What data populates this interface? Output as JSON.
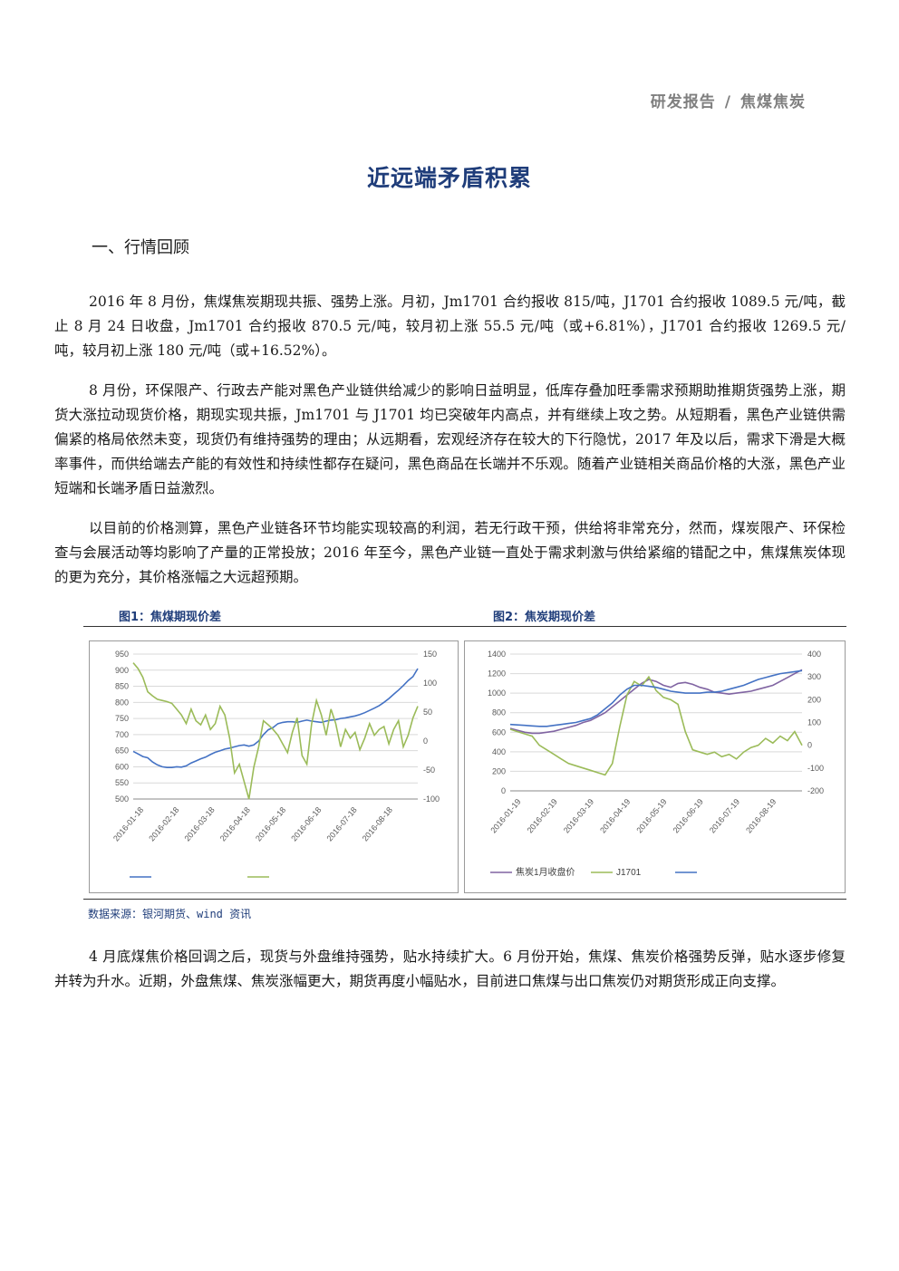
{
  "header": {
    "left": "研发报告",
    "sep": "/",
    "right": "焦煤焦炭"
  },
  "title": "近远端矛盾积累",
  "section_heading": "一、行情回顾",
  "paragraphs": [
    "2016 年 8 月份，焦煤焦炭期现共振、强势上涨。月初，Jm1701 合约报收 815/吨，J1701 合约报收 1089.5 元/吨，截止 8 月 24 日收盘，Jm1701 合约报收 870.5 元/吨，较月初上涨 55.5 元/吨（或+6.81%），J1701 合约报收 1269.5 元/吨，较月初上涨 180 元/吨（或+16.52%）。",
    "8 月份，环保限产、行政去产能对黑色产业链供给减少的影响日益明显，低库存叠加旺季需求预期助推期货强势上涨，期货大涨拉动现货价格，期现实现共振，Jm1701 与 J1701 均已突破年内高点，并有继续上攻之势。从短期看，黑色产业链供需偏紧的格局依然未变，现货仍有维持强势的理由；从远期看，宏观经济存在较大的下行隐忧，2017 年及以后，需求下滑是大概率事件，而供给端去产能的有效性和持续性都存在疑问，黑色商品在长端并不乐观。随着产业链相关商品价格的大涨，黑色产业短端和长端矛盾日益激烈。",
    "以目前的价格测算，黑色产业链各环节均能实现较高的利润，若无行政干预，供给将非常充分，然而，煤炭限产、环保检查与会展活动等均影响了产量的正常投放；2016 年至今，黑色产业链一直处于需求刺激与供给紧缩的错配之中，焦煤焦炭体现的更为充分，其价格涨幅之大远超预期。",
    "4 月底煤焦价格回调之后，现货与外盘维持强势，贴水持续扩大。6 月份开始，焦煤、焦炭价格强势反弹，贴水逐步修复并转为升水。近期，外盘焦煤、焦炭涨幅更大，期货再度小幅贴水，目前进口焦煤与出口焦炭仍对期货形成正向支撑。"
  ],
  "fig1_title": "图1：焦煤期现价差",
  "fig2_title": "图2：焦炭期现价差",
  "source": "数据来源：银河期货、wind 资讯",
  "chart_data": [
    {
      "type": "line",
      "title": "图1：焦煤期现价差",
      "yleft_ticks": [
        "950",
        "900",
        "850",
        "800",
        "750",
        "700",
        "650",
        "600",
        "550",
        "500"
      ],
      "yleft_lim": [
        500,
        950
      ],
      "yright_ticks": [
        "150",
        "100",
        "50",
        "0",
        "-50",
        "-100"
      ],
      "yright_lim": [
        -100,
        150
      ],
      "x_ticks": [
        "2016-01-18",
        "2016-02-18",
        "2016-03-18",
        "2016-04-18",
        "2016-05-18",
        "2016-06-18",
        "2016-07-18",
        "2016-08-18"
      ],
      "series": [
        {
          "axis": "left",
          "color": "#4472c4",
          "values": [
            648,
            640,
            632,
            628,
            615,
            606,
            600,
            598,
            598,
            600,
            599,
            603,
            612,
            618,
            625,
            630,
            638,
            645,
            650,
            655,
            658,
            662,
            666,
            668,
            664,
            668,
            680,
            700,
            715,
            722,
            734,
            738,
            740,
            740,
            738,
            742,
            745,
            742,
            740,
            738,
            742,
            745,
            746,
            750,
            752,
            755,
            758,
            762,
            768,
            775,
            782,
            790,
            800,
            812,
            825,
            838,
            852,
            868,
            880,
            905
          ]
        },
        {
          "axis": "right",
          "color": "#9bbb59",
          "values": [
            135,
            125,
            110,
            85,
            78,
            72,
            70,
            68,
            65,
            55,
            45,
            30,
            55,
            35,
            28,
            45,
            20,
            30,
            60,
            45,
            5,
            -55,
            -40,
            -70,
            -100,
            -45,
            -10,
            35,
            28,
            20,
            10,
            -5,
            -20,
            15,
            40,
            -25,
            -40,
            30,
            70,
            45,
            10,
            55,
            30,
            -10,
            20,
            5,
            15,
            -15,
            5,
            30,
            10,
            20,
            25,
            -5,
            20,
            35,
            -10,
            10,
            40,
            60
          ]
        }
      ]
    },
    {
      "type": "line",
      "title": "图2：焦炭期现价差",
      "yleft_ticks": [
        "1400",
        "1200",
        "1000",
        "800",
        "600",
        "400",
        "200",
        "0"
      ],
      "yleft_lim": [
        0,
        1400
      ],
      "yright_ticks": [
        "400",
        "300",
        "200",
        "100",
        "0",
        "-100",
        "-200"
      ],
      "yright_lim": [
        -200,
        400
      ],
      "x_ticks": [
        "2016-01-19",
        "2016-02-19",
        "2016-03-19",
        "2016-04-19",
        "2016-05-19",
        "2016-06-19",
        "2016-07-19",
        "2016-08-19"
      ],
      "series": [
        {
          "name": "焦炭1月收盘价",
          "axis": "left",
          "color": "#8064a2",
          "values": [
            640,
            620,
            600,
            590,
            590,
            600,
            610,
            630,
            650,
            670,
            700,
            720,
            760,
            800,
            860,
            920,
            980,
            1040,
            1100,
            1140,
            1120,
            1080,
            1060,
            1100,
            1110,
            1090,
            1060,
            1040,
            1010,
            1000,
            990,
            1000,
            1010,
            1020,
            1040,
            1060,
            1080,
            1120,
            1160,
            1200,
            1240
          ]
        },
        {
          "name": "J1701",
          "axis": "right",
          "color": "#9bbb59",
          "values": [
            70,
            60,
            50,
            40,
            0,
            -20,
            -40,
            -60,
            -80,
            -90,
            -100,
            -110,
            -120,
            -130,
            -80,
            80,
            220,
            280,
            260,
            300,
            240,
            210,
            200,
            180,
            60,
            -20,
            -30,
            -40,
            -30,
            -50,
            -40,
            -60,
            -30,
            -10,
            0,
            30,
            10,
            40,
            20,
            60,
            0
          ]
        },
        {
          "axis": "left",
          "color": "#4472c4",
          "values": [
            680,
            675,
            670,
            665,
            660,
            660,
            670,
            680,
            690,
            700,
            720,
            740,
            780,
            840,
            900,
            980,
            1040,
            1080,
            1080,
            1070,
            1060,
            1040,
            1020,
            1010,
            1000,
            1000,
            1000,
            1010,
            1010,
            1020,
            1040,
            1060,
            1080,
            1110,
            1140,
            1160,
            1180,
            1200,
            1210,
            1220,
            1230
          ]
        }
      ]
    }
  ]
}
